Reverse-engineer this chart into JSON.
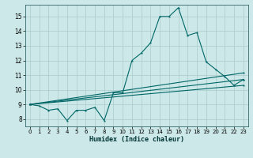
{
  "xlabel": "Humidex (Indice chaleur)",
  "ylabel": "",
  "bg_color": "#cce8e8",
  "grid_color": "#aacccc",
  "line_color": "#006666",
  "xlim": [
    -0.5,
    23.5
  ],
  "ylim": [
    7.5,
    15.8
  ],
  "xticks": [
    0,
    1,
    2,
    3,
    4,
    5,
    6,
    7,
    8,
    9,
    10,
    11,
    12,
    13,
    14,
    15,
    16,
    17,
    18,
    19,
    20,
    21,
    22,
    23
  ],
  "yticks": [
    8,
    9,
    10,
    11,
    12,
    13,
    14,
    15
  ],
  "series": [
    {
      "x": [
        0,
        1,
        2,
        3,
        4,
        5,
        6,
        7,
        8,
        9,
        10,
        11,
        12,
        13,
        14,
        15,
        16,
        17,
        18,
        19,
        20,
        21,
        22,
        23
      ],
      "y": [
        9.0,
        8.9,
        8.6,
        8.7,
        7.9,
        8.6,
        8.6,
        8.8,
        7.9,
        9.8,
        9.8,
        12.0,
        12.5,
        13.2,
        15.0,
        15.0,
        15.6,
        13.7,
        13.9,
        11.9,
        11.4,
        10.9,
        10.3,
        10.7
      ]
    },
    {
      "x": [
        0,
        23
      ],
      "y": [
        9.0,
        10.7
      ]
    },
    {
      "x": [
        0,
        23
      ],
      "y": [
        9.0,
        11.15
      ]
    },
    {
      "x": [
        0,
        23
      ],
      "y": [
        9.0,
        10.3
      ]
    }
  ]
}
